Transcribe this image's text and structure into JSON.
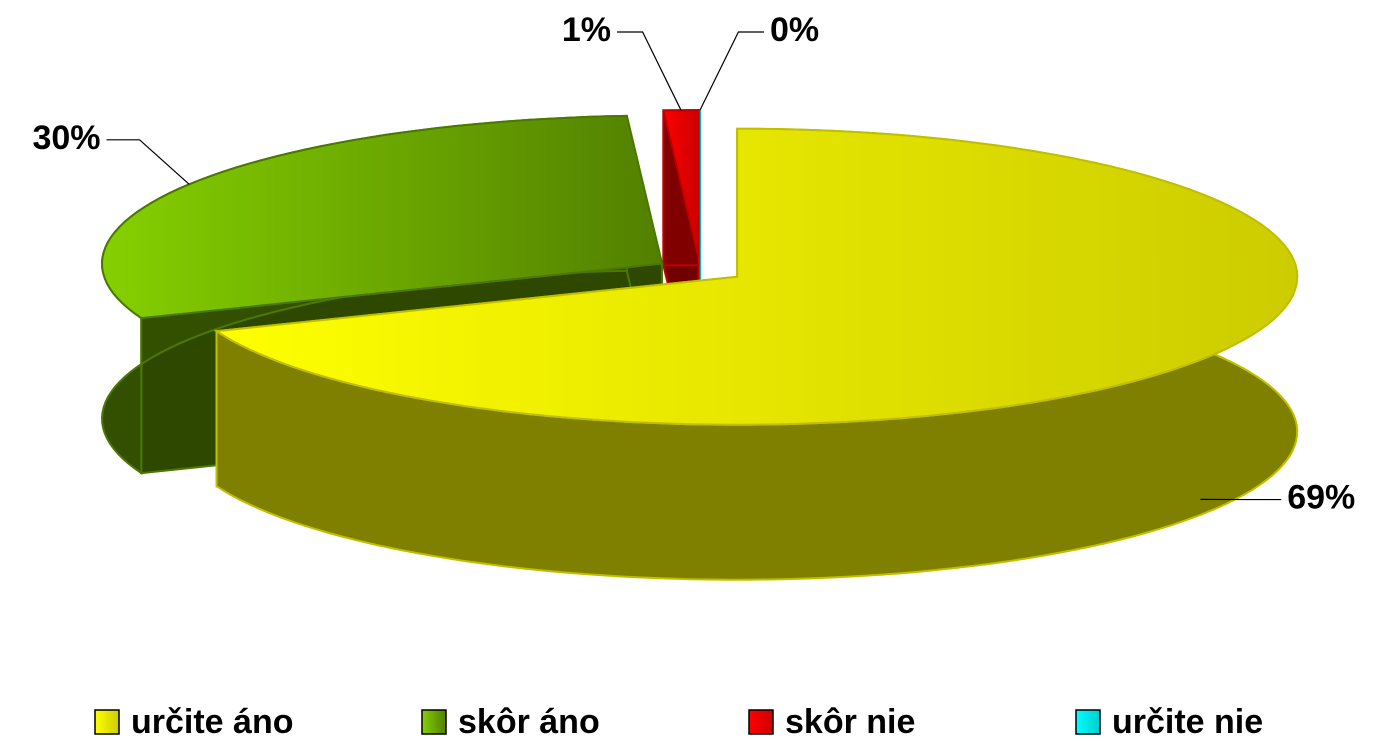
{
  "chart_data": {
    "type": "pie3d",
    "categories": [
      "určite áno",
      "skôr áno",
      "skôr nie",
      "určite nie"
    ],
    "values": [
      69,
      30,
      1,
      0
    ],
    "value_labels": [
      "69%",
      "30%",
      "1%",
      "0%"
    ],
    "colors": [
      "#ffff00",
      "#66a000",
      "#ff0000",
      "#00ffff"
    ],
    "legend": "bottom"
  }
}
